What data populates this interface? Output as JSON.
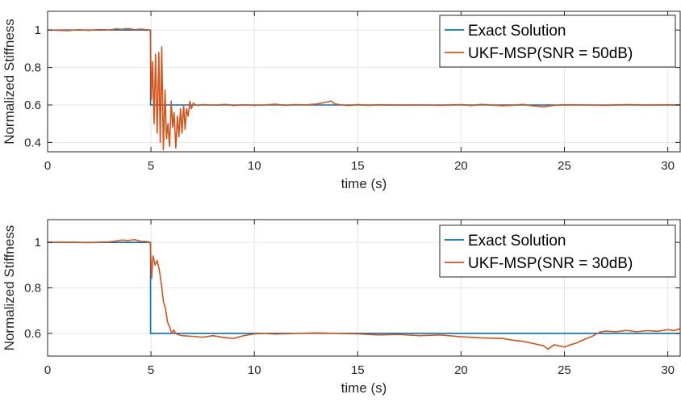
{
  "chart_data": [
    {
      "type": "line",
      "title": "",
      "xlabel": "time (s)",
      "ylabel": "Normalized Stiffness",
      "xlim": [
        0,
        30.6
      ],
      "ylim": [
        0.35,
        1.1
      ],
      "xticks": [
        0,
        5,
        10,
        15,
        20,
        25,
        30
      ],
      "yticks": [
        0.4,
        0.6,
        0.8,
        1
      ],
      "ytick_labels": [
        "0.4",
        "0.6",
        "0.8",
        "1"
      ],
      "grid": true,
      "legend_position": "top-right",
      "series": [
        {
          "name": "Exact Solution",
          "color": "#0072BD",
          "x": [
            0,
            4.98,
            4.98,
            30.6
          ],
          "y": [
            1,
            1,
            0.6,
            0.6
          ]
        },
        {
          "name": "UKF-MSP(SNR = 50dB)",
          "color": "#D95319",
          "x": [
            0,
            1,
            1.5,
            2,
            2.5,
            3,
            3.3,
            3.6,
            3.9,
            4.2,
            4.5,
            4.8,
            4.97,
            5.02,
            5.08,
            5.15,
            5.22,
            5.3,
            5.38,
            5.45,
            5.52,
            5.6,
            5.68,
            5.75,
            5.82,
            5.9,
            5.98,
            6.05,
            6.12,
            6.2,
            6.28,
            6.35,
            6.43,
            6.5,
            6.58,
            6.65,
            6.72,
            6.8,
            6.88,
            6.95,
            7.05,
            7.15,
            7.3,
            7.5,
            7.8,
            8.2,
            8.6,
            9,
            9.5,
            10,
            10.5,
            11,
            11.5,
            12,
            12.5,
            13,
            13.3,
            13.5,
            13.7,
            13.9,
            14.2,
            14.6,
            15,
            15.5,
            16,
            17,
            18,
            19,
            20,
            20.5,
            21,
            21.5,
            22,
            22.5,
            23,
            23.5,
            24,
            24.5,
            25,
            26,
            27,
            28,
            29,
            30,
            30.6
          ],
          "y": [
            1,
            0.997,
            1.002,
            0.998,
            1.003,
            1,
            1.006,
            1.004,
            1.008,
            1.002,
            1.005,
            1.002,
            1,
            0.63,
            0.83,
            0.5,
            0.87,
            0.45,
            0.88,
            0.4,
            0.91,
            0.36,
            0.68,
            0.42,
            0.5,
            0.38,
            0.62,
            0.48,
            0.56,
            0.37,
            0.54,
            0.43,
            0.58,
            0.45,
            0.6,
            0.47,
            0.58,
            0.54,
            0.62,
            0.58,
            0.61,
            0.6,
            0.598,
            0.602,
            0.6,
            0.599,
            0.603,
            0.597,
            0.601,
            0.598,
            0.6,
            0.604,
            0.598,
            0.602,
            0.6,
            0.605,
            0.611,
            0.615,
            0.621,
            0.606,
            0.6,
            0.597,
            0.602,
            0.598,
            0.601,
            0.599,
            0.6,
            0.598,
            0.602,
            0.597,
            0.603,
            0.599,
            0.596,
            0.598,
            0.603,
            0.595,
            0.59,
            0.598,
            0.601,
            0.6,
            0.598,
            0.602,
            0.599,
            0.601,
            0.6
          ]
        }
      ]
    },
    {
      "type": "line",
      "title": "",
      "xlabel": "time (s)",
      "ylabel": "Normalized Stiffness",
      "xlim": [
        0,
        30.6
      ],
      "ylim": [
        0.5,
        1.1
      ],
      "xticks": [
        0,
        5,
        10,
        15,
        20,
        25,
        30
      ],
      "yticks": [
        0.6,
        0.8,
        1
      ],
      "ytick_labels": [
        "0.6",
        "0.8",
        "1"
      ],
      "grid": true,
      "legend_position": "top-right",
      "series": [
        {
          "name": "Exact Solution",
          "color": "#0072BD",
          "x": [
            0,
            4.98,
            4.98,
            30.6
          ],
          "y": [
            1,
            1,
            0.6,
            0.6
          ]
        },
        {
          "name": "UKF-MSP(SNR = 30dB)",
          "color": "#D95319",
          "x": [
            0,
            1,
            2,
            3,
            3.3,
            3.6,
            3.9,
            4.2,
            4.5,
            4.8,
            4.97,
            5.03,
            5.1,
            5.2,
            5.3,
            5.4,
            5.5,
            5.6,
            5.7,
            5.8,
            5.9,
            6,
            6.1,
            6.2,
            6.3,
            6.5,
            7,
            7.5,
            8,
            8.5,
            9,
            9.5,
            10,
            10.5,
            11,
            12,
            13,
            14,
            15,
            16,
            17,
            18,
            19,
            20,
            21,
            22,
            22.5,
            23,
            23.5,
            24,
            24.2,
            24.5,
            25,
            25.3,
            25.6,
            26,
            26.3,
            26.7,
            27,
            27.5,
            28,
            28.5,
            29,
            29.5,
            30,
            30.3,
            30.6
          ],
          "y": [
            1,
            1.001,
            0.999,
            1.002,
            1.006,
            1.01,
            1.008,
            1.012,
            1.005,
            1.003,
            1,
            0.84,
            0.94,
            0.9,
            0.92,
            0.88,
            0.82,
            0.74,
            0.71,
            0.65,
            0.63,
            0.6,
            0.615,
            0.6,
            0.595,
            0.59,
            0.587,
            0.583,
            0.59,
            0.582,
            0.578,
            0.59,
            0.598,
            0.6,
            0.597,
            0.6,
            0.602,
            0.6,
            0.598,
            0.593,
            0.595,
            0.59,
            0.593,
            0.585,
            0.58,
            0.578,
            0.57,
            0.565,
            0.555,
            0.545,
            0.53,
            0.55,
            0.54,
            0.55,
            0.558,
            0.575,
            0.585,
            0.605,
            0.61,
            0.607,
            0.613,
            0.607,
            0.612,
            0.609,
            0.616,
            0.612,
            0.62
          ]
        }
      ]
    }
  ]
}
